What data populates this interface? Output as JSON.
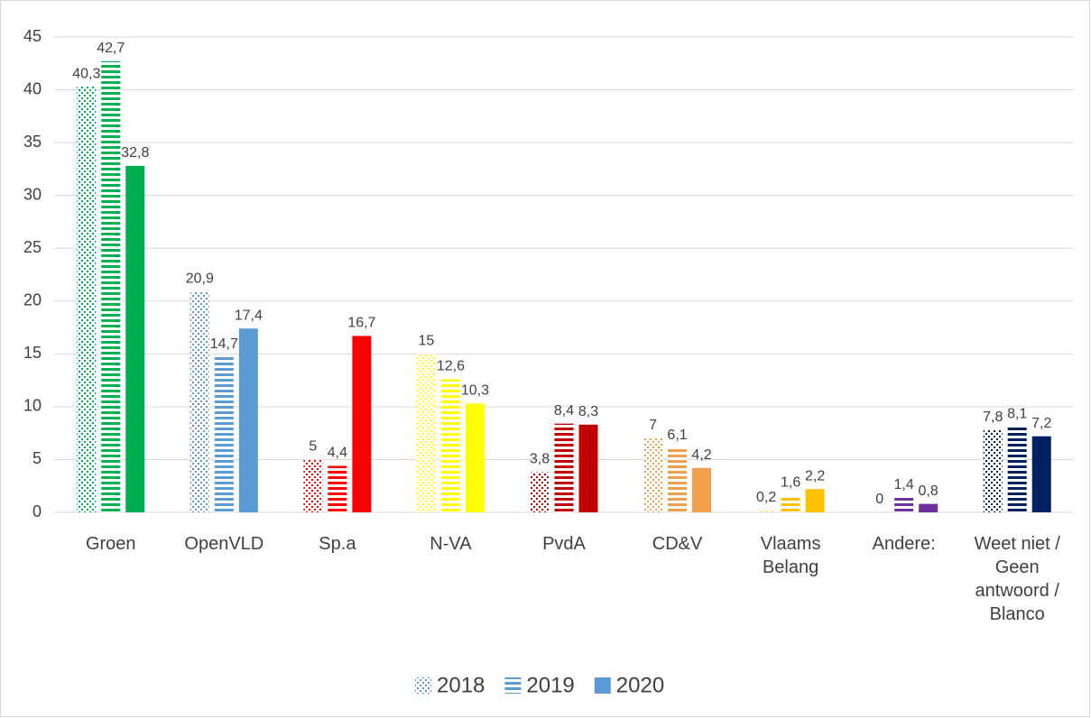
{
  "chart_data": {
    "type": "bar",
    "categories": [
      "Groen",
      "OpenVLD",
      "Sp.a",
      "N-VA",
      "PvdA",
      "CD&V",
      "Vlaams Belang",
      "Andere:",
      "Weet niet / Geen antwoord / Blanco"
    ],
    "category_colors": [
      "#00b050",
      "#5b9bd5",
      "#ff0000",
      "#ffff00",
      "#c00000",
      "#f0a04b",
      "#ffc000",
      "#7030a0",
      "#002060"
    ],
    "series": [
      {
        "name": "2018",
        "pattern": "dots",
        "color": "#5b9bd5",
        "values": [
          40.3,
          20.9,
          5,
          15,
          3.8,
          7,
          0.2,
          0,
          7.8
        ],
        "value_labels": [
          "40,3",
          "20,9",
          "5",
          "15",
          "3,8",
          "7",
          "0,2",
          "0",
          "7,8"
        ]
      },
      {
        "name": "2019",
        "pattern": "lines",
        "color": "#5b9bd5",
        "values": [
          42.7,
          14.7,
          4.4,
          12.6,
          8.4,
          6.1,
          1.6,
          1.4,
          8.1
        ],
        "value_labels": [
          "42,7",
          "14,7",
          "4,4",
          "12,6",
          "8,4",
          "6,1",
          "1,6",
          "1,4",
          "8,1"
        ]
      },
      {
        "name": "2020",
        "pattern": "solid",
        "color": "#5b9bd5",
        "values": [
          32.8,
          17.4,
          16.7,
          10.3,
          8.3,
          4.2,
          2.2,
          0.8,
          7.2
        ],
        "value_labels": [
          "32,8",
          "17,4",
          "16,7",
          "10,3",
          "8,3",
          "4,2",
          "2,2",
          "0,8",
          "7,2"
        ]
      }
    ],
    "ylim": [
      0,
      45
    ],
    "yticks": [
      0,
      5,
      10,
      15,
      20,
      25,
      30,
      35,
      40,
      45
    ],
    "grid": true,
    "legend": "bottom"
  }
}
